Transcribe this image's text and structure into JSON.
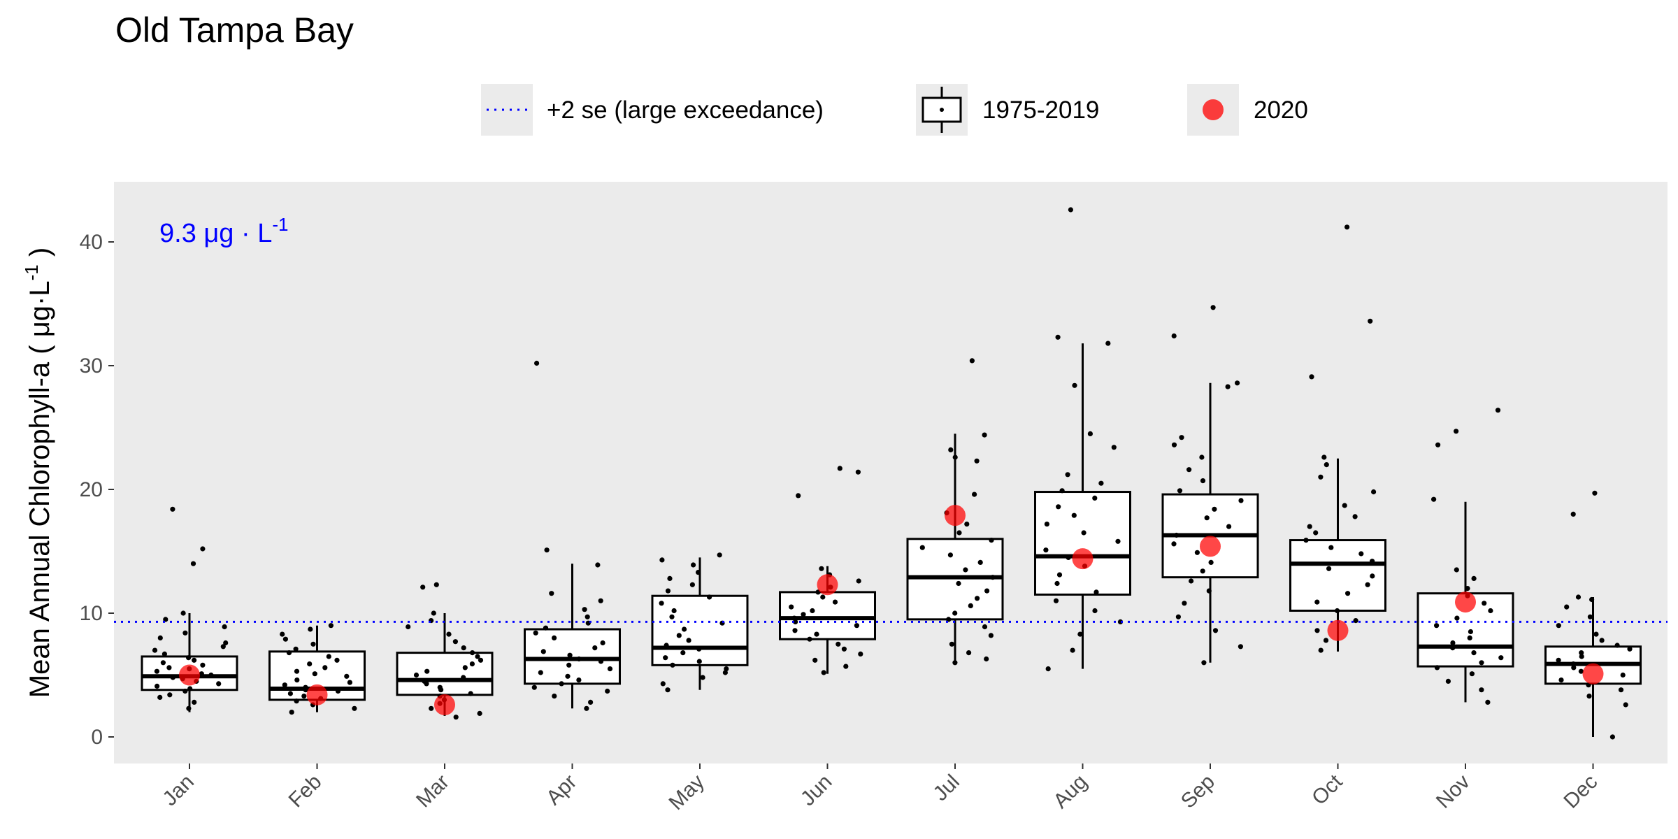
{
  "chart_data": {
    "type": "box",
    "title": "Old Tampa Bay",
    "ylabel": "Mean Annual Chlorophyll-a",
    "ylabel_units": {
      "prefix": "( ",
      "mu": "μ",
      "g": "g",
      "dot": "·",
      "L": "L",
      "exp": "-1",
      "suffix": " )"
    },
    "ylim": [
      -2,
      45
    ],
    "yticks": [
      0,
      10,
      20,
      30,
      40
    ],
    "grid": false,
    "legend_position": "top",
    "legend": [
      {
        "key": "threshold",
        "label": "+2 se (large exceedance)"
      },
      {
        "key": "boxes",
        "label": "1975-2019"
      },
      {
        "key": "current",
        "label": "2020"
      }
    ],
    "threshold": {
      "value": 9.3,
      "label_value": "9.3",
      "label_mu": "μ",
      "label_g": "g",
      "label_dot": "·",
      "label_L": "L",
      "label_exp": "-1",
      "color": "#0000ff"
    },
    "colors": {
      "panel": "#ebebeb",
      "box_fill": "#ffffff",
      "box_line": "#000000",
      "point": "#000000",
      "current": "#ff0000",
      "threshold": "#0000ff"
    },
    "categories": [
      "Jan",
      "Feb",
      "Mar",
      "Apr",
      "May",
      "Jun",
      "Jul",
      "Aug",
      "Sep",
      "Oct",
      "Nov",
      "Dec"
    ],
    "boxes": [
      {
        "month": "Jan",
        "whisker_low": 2.0,
        "q1": 3.8,
        "median": 4.9,
        "q3": 6.5,
        "whisker_high": 10.0
      },
      {
        "month": "Feb",
        "whisker_low": 2.0,
        "q1": 3.0,
        "median": 3.9,
        "q3": 6.9,
        "whisker_high": 9.0
      },
      {
        "month": "Mar",
        "whisker_low": 1.7,
        "q1": 3.4,
        "median": 4.6,
        "q3": 6.8,
        "whisker_high": 10.0
      },
      {
        "month": "Apr",
        "whisker_low": 2.3,
        "q1": 4.3,
        "median": 6.3,
        "q3": 8.7,
        "whisker_high": 14.0
      },
      {
        "month": "May",
        "whisker_low": 3.8,
        "q1": 5.8,
        "median": 7.2,
        "q3": 11.4,
        "whisker_high": 14.5
      },
      {
        "month": "Jun",
        "whisker_low": 5.1,
        "q1": 7.9,
        "median": 9.6,
        "q3": 11.7,
        "whisker_high": 13.8
      },
      {
        "month": "Jul",
        "whisker_low": 6.0,
        "q1": 9.5,
        "median": 12.9,
        "q3": 16.0,
        "whisker_high": 24.5
      },
      {
        "month": "Aug",
        "whisker_low": 5.5,
        "q1": 11.5,
        "median": 14.6,
        "q3": 19.8,
        "whisker_high": 31.8
      },
      {
        "month": "Sep",
        "whisker_low": 6.0,
        "q1": 12.9,
        "median": 16.3,
        "q3": 19.6,
        "whisker_high": 28.6
      },
      {
        "month": "Oct",
        "whisker_low": 6.9,
        "q1": 10.2,
        "median": 14.0,
        "q3": 15.9,
        "whisker_high": 22.5
      },
      {
        "month": "Nov",
        "whisker_low": 2.8,
        "q1": 5.7,
        "median": 7.3,
        "q3": 11.6,
        "whisker_high": 19.0
      },
      {
        "month": "Dec",
        "whisker_low": 0.0,
        "q1": 4.3,
        "median": 5.9,
        "q3": 7.3,
        "whisker_high": 11.3
      }
    ],
    "points": [
      [
        2.3,
        2.8,
        3.2,
        3.4,
        3.7,
        3.9,
        4.1,
        4.3,
        4.5,
        4.7,
        4.8,
        5.0,
        5.1,
        5.3,
        5.5,
        5.6,
        5.8,
        6.0,
        6.2,
        6.4,
        6.7,
        7.0,
        7.3,
        7.6,
        8.0,
        8.4,
        8.9,
        9.5,
        10.0,
        14.0,
        15.2,
        18.4
      ],
      [
        2.0,
        2.3,
        2.6,
        2.9,
        3.1,
        3.3,
        3.5,
        3.7,
        3.8,
        4.0,
        4.2,
        4.4,
        4.6,
        4.9,
        5.1,
        5.3,
        5.6,
        5.9,
        6.2,
        6.5,
        6.8,
        7.1,
        7.5,
        7.9,
        8.3,
        8.7,
        9.0
      ],
      [
        1.6,
        1.9,
        2.3,
        2.7,
        3.0,
        3.3,
        3.5,
        3.8,
        4.0,
        4.3,
        4.5,
        4.8,
        5.0,
        5.3,
        5.6,
        5.9,
        6.2,
        6.5,
        6.8,
        7.2,
        7.7,
        8.3,
        8.9,
        9.4,
        10.0,
        12.1,
        12.3
      ],
      [
        2.3,
        2.8,
        3.3,
        3.7,
        4.0,
        4.3,
        4.6,
        4.9,
        5.2,
        5.5,
        5.8,
        6.1,
        6.3,
        6.6,
        6.9,
        7.2,
        7.6,
        8.0,
        8.4,
        8.8,
        9.2,
        9.7,
        10.3,
        11.0,
        11.6,
        13.9,
        15.1,
        30.2
      ],
      [
        3.8,
        4.3,
        4.8,
        5.2,
        5.5,
        5.8,
        6.1,
        6.4,
        6.8,
        7.1,
        7.4,
        7.8,
        8.2,
        8.7,
        9.2,
        9.7,
        10.2,
        10.8,
        11.3,
        11.8,
        12.3,
        12.8,
        13.3,
        13.9,
        14.3,
        14.7
      ],
      [
        5.2,
        5.7,
        6.2,
        6.7,
        7.1,
        7.5,
        7.9,
        8.3,
        8.6,
        9.0,
        9.3,
        9.6,
        9.9,
        10.2,
        10.5,
        10.9,
        11.3,
        11.7,
        12.1,
        12.6,
        13.1,
        13.6,
        19.5,
        21.4,
        21.7
      ],
      [
        6.0,
        6.3,
        6.8,
        7.5,
        8.2,
        8.9,
        9.5,
        10.0,
        10.6,
        11.2,
        11.8,
        12.4,
        12.9,
        13.5,
        14.1,
        14.7,
        15.3,
        15.9,
        16.5,
        17.2,
        18.1,
        19.6,
        22.3,
        22.6,
        23.2,
        24.4,
        30.4
      ],
      [
        5.5,
        7.0,
        8.3,
        9.3,
        10.2,
        11.0,
        11.7,
        12.4,
        13.1,
        13.8,
        14.5,
        15.1,
        15.8,
        16.5,
        17.2,
        17.9,
        18.6,
        19.3,
        19.9,
        20.5,
        21.2,
        23.4,
        24.5,
        28.4,
        31.8,
        32.3,
        42.6
      ],
      [
        6.0,
        7.3,
        8.6,
        9.7,
        10.8,
        11.8,
        12.6,
        13.4,
        14.1,
        14.9,
        15.6,
        16.3,
        17.0,
        17.7,
        18.4,
        19.1,
        19.9,
        20.7,
        21.6,
        22.6,
        23.6,
        24.2,
        28.3,
        28.6,
        32.4,
        34.7
      ],
      [
        7.0,
        7.8,
        8.6,
        9.4,
        10.2,
        10.9,
        11.6,
        12.3,
        13.0,
        13.6,
        14.2,
        14.8,
        15.3,
        15.9,
        16.5,
        17.0,
        17.8,
        18.7,
        19.8,
        21.0,
        22.0,
        22.6,
        29.1,
        33.6,
        41.2
      ],
      [
        2.8,
        3.8,
        4.5,
        5.1,
        5.6,
        6.0,
        6.4,
        6.8,
        7.2,
        7.6,
        8.0,
        8.5,
        9.0,
        9.6,
        10.2,
        10.8,
        11.4,
        12.0,
        12.8,
        13.5,
        19.2,
        23.6,
        24.7,
        26.4
      ],
      [
        0.0,
        2.6,
        3.3,
        3.8,
        4.2,
        4.6,
        5.0,
        5.3,
        5.6,
        5.9,
        6.2,
        6.5,
        6.8,
        7.1,
        7.4,
        7.8,
        8.3,
        9.0,
        9.7,
        10.5,
        11.1,
        11.3,
        18.0,
        19.7
      ]
    ],
    "current": [
      {
        "month": "Jan",
        "value": 5.0
      },
      {
        "month": "Feb",
        "value": 3.4
      },
      {
        "month": "Mar",
        "value": 2.6
      },
      {
        "month": "Jun",
        "value": 12.3
      },
      {
        "month": "Jul",
        "value": 17.9
      },
      {
        "month": "Aug",
        "value": 14.4
      },
      {
        "month": "Sep",
        "value": 15.4
      },
      {
        "month": "Oct",
        "value": 8.6
      },
      {
        "month": "Nov",
        "value": 10.9
      },
      {
        "month": "Dec",
        "value": 5.1
      }
    ]
  }
}
